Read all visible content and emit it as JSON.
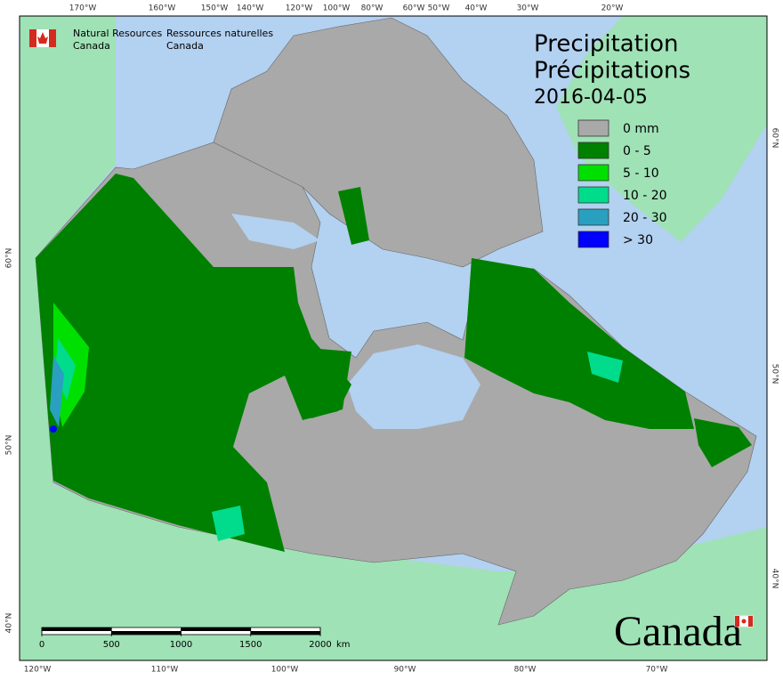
{
  "header": {
    "agency_en": [
      "Natural Resources",
      "Canada"
    ],
    "agency_fr": [
      "Ressources naturelles",
      "Canada"
    ]
  },
  "title": {
    "en": "Precipitation",
    "fr": "Précipitations",
    "date": "2016-04-05"
  },
  "legend": [
    {
      "label": "0 mm",
      "color": "#a9a9a9"
    },
    {
      "label": "0 - 5",
      "color": "#008000"
    },
    {
      "label": "5 - 10",
      "color": "#00e000"
    },
    {
      "label": "10 - 20",
      "color": "#00dc8c"
    },
    {
      "label": "20 - 30",
      "color": "#2aa0c0"
    },
    {
      "label": "> 30",
      "color": "#0000ff"
    }
  ],
  "graticule": {
    "top": [
      "170°W",
      "160°W",
      "150°W",
      "140°W",
      "120°W",
      "100°W",
      "80°W",
      "60°W",
      "50°W",
      "40°W",
      "30°W",
      "20°W"
    ],
    "bottom": [
      "120°W",
      "110°W",
      "100°W",
      "90°W",
      "80°W",
      "70°W"
    ],
    "left": [
      "60°N",
      "50°N",
      "40°N"
    ],
    "right": [
      "60°N",
      "50°N",
      "40°N"
    ]
  },
  "scale_bar": {
    "ticks": [
      0,
      500,
      1000,
      1500,
      2000
    ],
    "unit": "km"
  },
  "wordmark": "Canada"
}
